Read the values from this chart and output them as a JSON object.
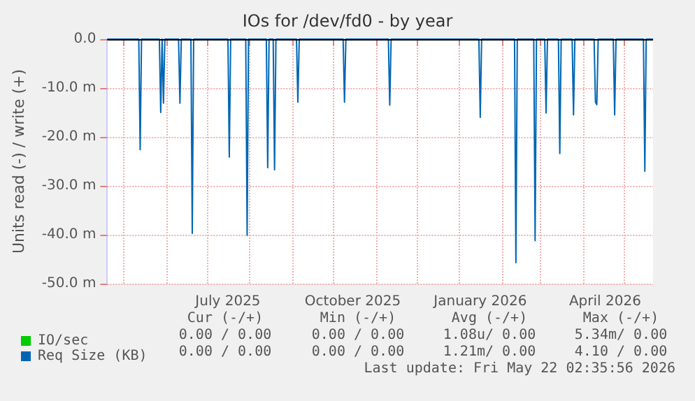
{
  "chart_data": {
    "type": "line",
    "title": "IOs for /dev/fd0 - by year",
    "ylabel": "Units read (-) / write (+)",
    "x": [
      "2025-04-19",
      "2025-05-12",
      "2025-05-13",
      "2025-05-14",
      "2025-05-27",
      "2025-05-28",
      "2025-05-29",
      "2025-05-30",
      "2025-05-31",
      "2025-06-10",
      "2025-06-11",
      "2025-06-12",
      "2025-06-19",
      "2025-06-20",
      "2025-06-21",
      "2025-07-16",
      "2025-07-17",
      "2025-07-18",
      "2025-07-29",
      "2025-07-30",
      "2025-07-31",
      "2025-08-13",
      "2025-08-14",
      "2025-08-15",
      "2025-08-18",
      "2025-08-19",
      "2025-08-20",
      "2025-09-04",
      "2025-09-05",
      "2025-09-06",
      "2025-10-08",
      "2025-10-09",
      "2025-10-10",
      "2025-11-10",
      "2025-11-11",
      "2025-11-12",
      "2026-01-15",
      "2026-01-16",
      "2026-01-17",
      "2026-02-10",
      "2026-02-11",
      "2026-02-12",
      "2026-02-24",
      "2026-02-25",
      "2026-02-26",
      "2026-03-04",
      "2026-03-05",
      "2026-03-06",
      "2026-03-14",
      "2026-03-15",
      "2026-03-16",
      "2026-03-24",
      "2026-03-25",
      "2026-03-26",
      "2026-04-09",
      "2026-04-10",
      "2026-04-11",
      "2026-04-12",
      "2026-04-23",
      "2026-04-24",
      "2026-04-25",
      "2026-05-15",
      "2026-05-16",
      "2026-05-17",
      "2026-05-22"
    ],
    "series": [
      {
        "name": "IO/sec",
        "color": "#00cc00",
        "values": [
          null,
          null,
          null,
          null,
          null,
          null,
          null,
          null,
          null,
          null,
          null,
          null,
          null,
          null,
          null,
          null,
          null,
          null,
          null,
          null,
          null,
          null,
          null,
          null,
          null,
          null,
          null,
          null,
          null,
          null,
          null,
          null,
          null,
          null,
          null,
          null,
          null,
          null,
          null,
          null,
          null,
          null,
          null,
          null,
          null,
          null,
          null,
          null,
          null,
          null,
          null,
          null,
          null,
          null,
          null,
          null,
          null,
          null,
          null,
          null,
          null,
          null,
          null,
          null,
          null
        ]
      },
      {
        "name": "Req Size (KB)",
        "color": "#0066b3",
        "values": [
          0,
          0,
          -22.6,
          0,
          0,
          -15.0,
          0,
          -13.1,
          0,
          0,
          -13.1,
          0,
          0,
          -39.7,
          0,
          0,
          -24.1,
          0,
          0,
          -40.1,
          0,
          0,
          -26.3,
          0,
          0,
          -26.7,
          0,
          0,
          -12.9,
          0,
          0,
          -12.9,
          0,
          0,
          -13.5,
          0,
          0,
          -16.0,
          0,
          0,
          -45.7,
          0,
          0,
          -41.2,
          0,
          0,
          -15.1,
          0,
          0,
          -23.4,
          0,
          0,
          -15.5,
          0,
          0,
          -12.9,
          -13.4,
          0,
          0,
          -15.5,
          0,
          0,
          -27.0,
          0,
          0
        ]
      }
    ],
    "xlim": [
      "2025-04-19",
      "2026-05-22"
    ],
    "xticks": [
      {
        "value": "2025-05-01",
        "label": null
      },
      {
        "value": "2025-06-01",
        "label": null
      },
      {
        "value": "2025-07-01",
        "label": null
      },
      {
        "value": "2025-08-01",
        "label": null
      },
      {
        "value": "2025-09-01",
        "label": null
      },
      {
        "value": "2025-10-01",
        "label": null
      },
      {
        "value": "2025-11-01",
        "label": null
      },
      {
        "value": "2025-12-01",
        "label": null
      },
      {
        "value": "2026-01-01",
        "label": null
      },
      {
        "value": "2026-02-01",
        "label": null
      },
      {
        "value": "2026-03-01",
        "label": null
      },
      {
        "value": "2026-04-01",
        "label": null
      },
      {
        "value": "2026-05-01",
        "label": null
      },
      {
        "value": "2025-07-16",
        "label": "July 2025"
      },
      {
        "value": "2025-10-15",
        "label": "October 2025"
      },
      {
        "value": "2026-01-16",
        "label": "January 2026"
      },
      {
        "value": "2026-04-17",
        "label": "April 2026"
      }
    ],
    "ylim": [
      -50,
      0
    ],
    "yticks": [
      {
        "value": 0,
        "label": "0.0"
      },
      {
        "value": -10,
        "label": "-10.0 m"
      },
      {
        "value": -20,
        "label": "-20.0 m"
      },
      {
        "value": -30,
        "label": "-30.0 m"
      },
      {
        "value": -40,
        "label": "-40.0 m"
      },
      {
        "value": -50,
        "label": "-50.0 m"
      }
    ],
    "ref_lines": [
      {
        "axis": "y",
        "value": 0,
        "color": "#000000"
      }
    ],
    "grid": true,
    "legend": "bottom left",
    "marker": "none",
    "annotations": [
      "Cur (-/+)",
      "Min (-/+)",
      "Avg (-/+)",
      "Max (-/+)",
      "0.00 / 0.00",
      "0.00 / 0.00",
      "1.08u/ 0.00",
      "5.34m/ 0.00",
      "0.00 / 0.00",
      "0.00 / 0.00",
      "1.21m/ 0.00",
      "4.10 / 0.00",
      "Last update: Fri May 22 02:35:56 2026"
    ]
  }
}
